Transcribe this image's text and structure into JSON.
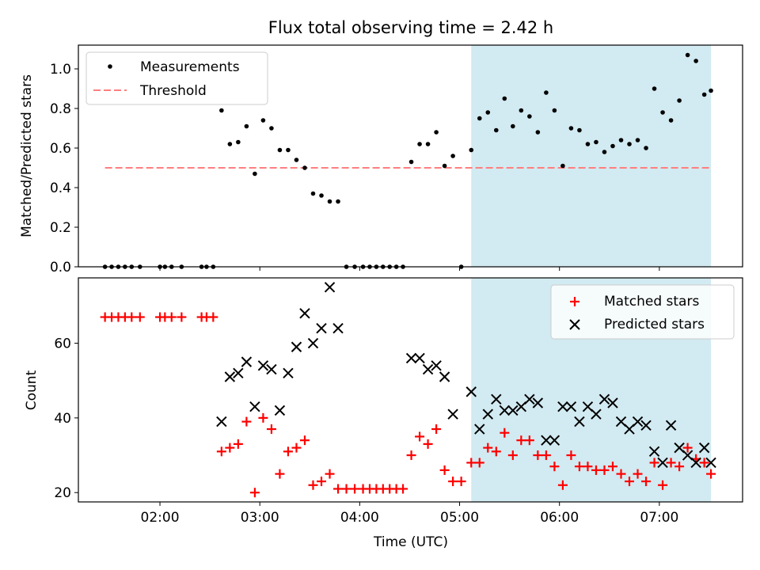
{
  "title": "Flux total observing time = 2.42 h",
  "chart_data": [
    {
      "type": "scatter",
      "ylabel": "Matched/Predicted stars",
      "xlim": [
        1.1833,
        7.8333
      ],
      "ylim": [
        0.0,
        1.12
      ],
      "yticks": [
        0.0,
        0.2,
        0.4,
        0.6,
        0.8,
        1.0
      ],
      "ytick_labels": [
        "0.0",
        "0.2",
        "0.4",
        "0.6",
        "0.8",
        "1.0"
      ],
      "shaded_span": [
        5.1167,
        7.5167
      ],
      "shade_color": "#add8e6",
      "legend_position": "upper left",
      "threshold": {
        "name": "Threshold",
        "value": 0.5,
        "x_range": [
          1.45,
          7.5
        ],
        "color": "#ff7f7f"
      },
      "series": [
        {
          "name": "Measurements",
          "color": "#000000",
          "marker": "dot",
          "x": [
            1.45,
            1.5167,
            1.5833,
            1.65,
            1.7167,
            1.8,
            2.0,
            2.05,
            2.1167,
            2.2167,
            2.4167,
            2.4667,
            2.5333,
            2.6167,
            2.7,
            2.7833,
            2.8667,
            2.95,
            3.0333,
            3.1167,
            3.2,
            3.2833,
            3.3667,
            3.45,
            3.5333,
            3.6167,
            3.7,
            3.7833,
            3.8667,
            3.95,
            4.0333,
            4.1,
            4.1667,
            4.2333,
            4.3,
            4.3667,
            4.4333,
            4.5167,
            4.6,
            4.6833,
            4.7667,
            4.85,
            4.9333,
            5.0167,
            5.1167,
            5.2,
            5.2833,
            5.3667,
            5.45,
            5.5333,
            5.6167,
            5.7,
            5.7833,
            5.8667,
            5.95,
            6.0333,
            6.1167,
            6.2,
            6.2833,
            6.3667,
            6.45,
            6.5333,
            6.6167,
            6.7,
            6.7833,
            6.8667,
            6.95,
            7.0333,
            7.1167,
            7.2,
            7.2833,
            7.3667,
            7.45,
            7.5167
          ],
          "y": [
            0.0,
            0.0,
            0.0,
            0.0,
            0.0,
            0.0,
            0.0,
            0.0,
            0.0,
            0.0,
            0.0,
            0.0,
            0.0,
            0.79,
            0.62,
            0.63,
            0.71,
            0.47,
            0.74,
            0.7,
            0.59,
            0.59,
            0.54,
            0.5,
            0.37,
            0.36,
            0.33,
            0.33,
            0.0,
            0.0,
            0.0,
            0.0,
            0.0,
            0.0,
            0.0,
            0.0,
            0.0,
            0.53,
            0.62,
            0.62,
            0.68,
            0.51,
            0.56,
            0.0,
            0.59,
            0.75,
            0.78,
            0.69,
            0.85,
            0.71,
            0.79,
            0.76,
            0.68,
            0.88,
            0.79,
            0.51,
            0.7,
            0.69,
            0.62,
            0.63,
            0.58,
            0.61,
            0.64,
            0.62,
            0.64,
            0.6,
            0.9,
            0.78,
            0.74,
            0.84,
            1.07,
            1.04,
            0.87,
            0.89
          ]
        }
      ]
    },
    {
      "type": "scatter",
      "xlabel": "Time (UTC)",
      "ylabel": "Count",
      "xlim": [
        1.1833,
        7.8333
      ],
      "ylim": [
        17.5,
        77.5
      ],
      "yticks": [
        20,
        40,
        60
      ],
      "ytick_labels": [
        "20",
        "40",
        "60"
      ],
      "xticks": [
        2,
        3,
        4,
        5,
        6,
        7
      ],
      "xtick_labels": [
        "02:00",
        "03:00",
        "04:00",
        "05:00",
        "06:00",
        "07:00"
      ],
      "shaded_span": [
        5.1167,
        7.5167
      ],
      "shade_color": "#add8e6",
      "legend_position": "upper right",
      "series": [
        {
          "name": "Matched stars",
          "color": "#ff0000",
          "marker": "plus",
          "x": [
            1.45,
            1.5167,
            1.5833,
            1.65,
            1.7167,
            1.8,
            2.0,
            2.05,
            2.1167,
            2.2167,
            2.4167,
            2.4667,
            2.5333,
            2.6167,
            2.7,
            2.7833,
            2.8667,
            2.95,
            3.0333,
            3.1167,
            3.2,
            3.2833,
            3.3667,
            3.45,
            3.5333,
            3.6167,
            3.7,
            3.7833,
            3.8667,
            3.95,
            4.0333,
            4.1,
            4.1667,
            4.2333,
            4.3,
            4.3667,
            4.4333,
            4.5167,
            4.6,
            4.6833,
            4.7667,
            4.85,
            4.9333,
            5.0167,
            5.1167,
            5.2,
            5.2833,
            5.3667,
            5.45,
            5.5333,
            5.6167,
            5.7,
            5.7833,
            5.8667,
            5.95,
            6.0333,
            6.1167,
            6.2,
            6.2833,
            6.3667,
            6.45,
            6.5333,
            6.6167,
            6.7,
            6.7833,
            6.8667,
            6.95,
            7.0333,
            7.1167,
            7.2,
            7.2833,
            7.3667,
            7.45,
            7.5167
          ],
          "y": [
            67,
            67,
            67,
            67,
            67,
            67,
            67,
            67,
            67,
            67,
            67,
            67,
            67,
            31,
            32,
            33,
            39,
            20,
            40,
            37,
            25,
            31,
            32,
            34,
            22,
            23,
            25,
            21,
            21,
            21,
            21,
            21,
            21,
            21,
            21,
            21,
            21,
            30,
            35,
            33,
            37,
            26,
            23,
            23,
            28,
            28,
            32,
            31,
            36,
            30,
            34,
            34,
            30,
            30,
            27,
            22,
            30,
            27,
            27,
            26,
            26,
            27,
            25,
            23,
            25,
            23,
            28,
            22,
            28,
            27,
            32,
            29,
            28,
            25
          ]
        },
        {
          "name": "Predicted stars",
          "color": "#000000",
          "marker": "x",
          "x": [
            2.6167,
            2.7,
            2.7833,
            2.8667,
            2.95,
            3.0333,
            3.1167,
            3.2,
            3.2833,
            3.3667,
            3.45,
            3.5333,
            3.6167,
            3.7,
            3.7833,
            4.5167,
            4.6,
            4.6833,
            4.7667,
            4.85,
            4.9333,
            5.1167,
            5.2,
            5.2833,
            5.3667,
            5.45,
            5.5333,
            5.6167,
            5.7,
            5.7833,
            5.8667,
            5.95,
            6.0333,
            6.1167,
            6.2,
            6.2833,
            6.3667,
            6.45,
            6.5333,
            6.6167,
            6.7,
            6.7833,
            6.8667,
            6.95,
            7.0333,
            7.1167,
            7.2,
            7.2833,
            7.3667,
            7.45,
            7.5167
          ],
          "y": [
            39,
            51,
            52,
            55,
            43,
            54,
            53,
            42,
            52,
            59,
            68,
            60,
            64,
            75,
            64,
            56,
            56,
            53,
            54,
            51,
            41,
            47,
            37,
            41,
            45,
            42,
            42,
            43,
            45,
            44,
            34,
            34,
            43,
            43,
            39,
            43,
            41,
            45,
            44,
            39,
            37,
            39,
            38,
            31,
            28,
            38,
            32,
            30,
            28,
            32,
            28
          ]
        }
      ]
    }
  ]
}
